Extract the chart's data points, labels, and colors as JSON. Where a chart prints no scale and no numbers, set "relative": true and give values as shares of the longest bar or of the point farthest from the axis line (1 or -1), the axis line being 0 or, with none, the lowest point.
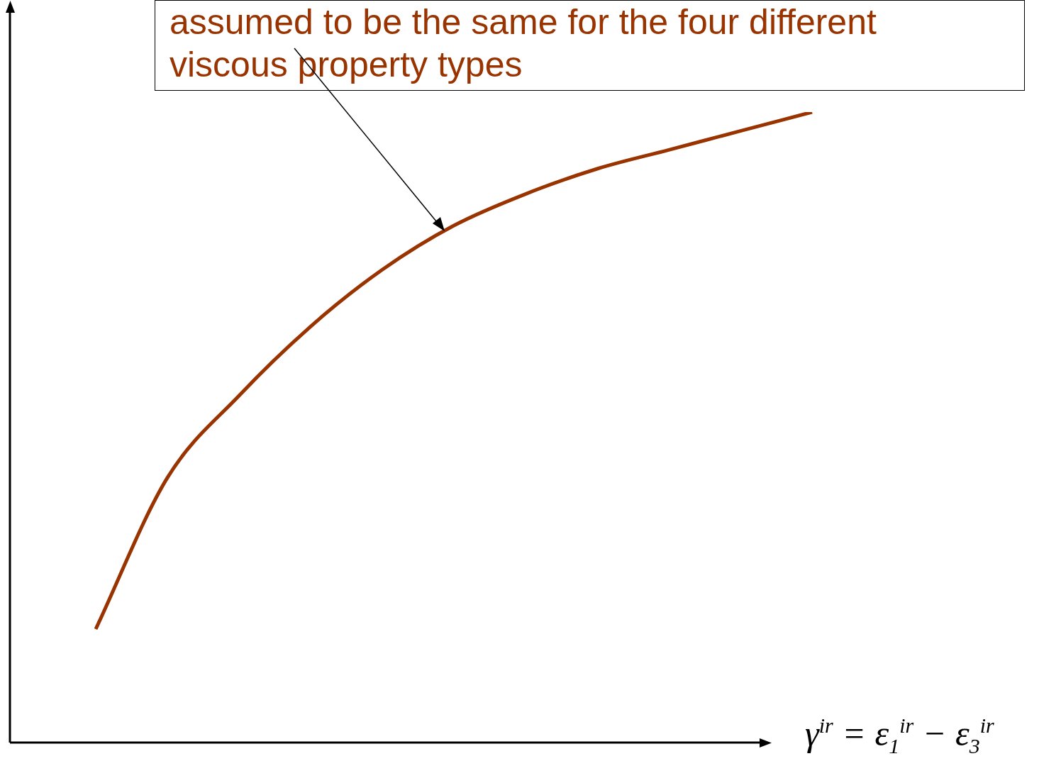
{
  "chart_data": {
    "type": "line",
    "relative": true,
    "categories": [
      null,
      null,
      null,
      null,
      null,
      null,
      null,
      null,
      null,
      null,
      null
    ],
    "xlabel": "γ$^{ir}$ = ε$_{1}$$^{ir}$ − ε$_{3}$$^{ir}$",
    "annotations": [
      "assumed to be the same for the four different viscous property types"
    ],
    "series": [
      {
        "color": "#993300",
        "values": [
          0.18,
          0.42,
          0.55,
          0.66,
          0.75,
          0.82,
          0.87,
          0.91,
          0.94,
          0.97,
          1.0
        ]
      }
    ],
    "grid": false,
    "legend": false
  }
}
